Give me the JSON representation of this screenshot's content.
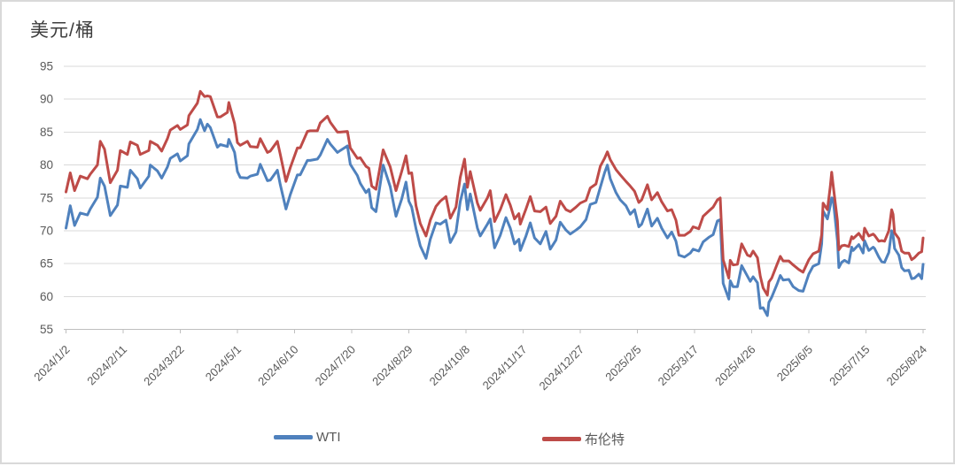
{
  "chart_data": {
    "type": "line",
    "title": "美元/桶",
    "ylabel": "美元/桶",
    "xlabel": "",
    "grid": true,
    "legend_position": "bottom",
    "ylim": [
      55,
      95
    ],
    "y_ticks": [
      55,
      60,
      65,
      70,
      75,
      80,
      85,
      90,
      95
    ],
    "x_tick_labels": [
      "2024/1/2",
      "2024/2/11",
      "2024/3/22",
      "2024/5/1",
      "2024/6/10",
      "2024/7/20",
      "2024/8/29",
      "2024/10/8",
      "2024/11/17",
      "2024/12/27",
      "2025/2/5",
      "2025/3/17",
      "2025/4/26",
      "2025/6/5",
      "2025/7/15",
      "2025/8/24"
    ],
    "x_tick_days": [
      0,
      40,
      80,
      120,
      160,
      200,
      240,
      280,
      320,
      360,
      400,
      440,
      480,
      520,
      560,
      600
    ],
    "x_span_days": 600,
    "days": [
      0,
      3,
      6,
      10,
      15,
      17,
      22,
      24,
      27,
      31,
      36,
      38,
      43,
      45,
      50,
      52,
      58,
      59,
      64,
      67,
      71,
      73,
      78,
      80,
      85,
      86,
      92,
      94,
      97,
      99,
      101,
      106,
      108,
      113,
      114,
      118,
      120,
      122,
      127,
      129,
      134,
      136,
      141,
      143,
      148,
      150,
      154,
      157,
      162,
      164,
      169,
      171,
      176,
      178,
      183,
      185,
      190,
      192,
      197,
      199,
      204,
      206,
      210,
      212,
      214,
      217,
      222,
      227,
      231,
      235,
      238,
      240,
      242,
      245,
      248,
      252,
      255,
      259,
      262,
      266,
      269,
      273,
      276,
      279,
      281,
      283,
      288,
      290,
      295,
      297,
      300,
      304,
      308,
      311,
      314,
      317,
      318,
      322,
      325,
      328,
      332,
      336,
      339,
      343,
      346,
      350,
      353,
      357,
      360,
      364,
      367,
      371,
      374,
      377,
      379,
      381,
      385,
      388,
      392,
      395,
      398,
      401,
      403,
      407,
      410,
      414,
      417,
      421,
      424,
      427,
      429,
      433,
      437,
      439,
      443,
      446,
      450,
      453,
      456,
      458,
      459,
      460,
      464,
      465,
      467,
      470,
      473,
      477,
      479,
      481,
      484,
      486,
      488,
      491,
      492,
      494,
      498,
      500,
      502,
      506,
      509,
      513,
      516,
      520,
      523,
      527,
      529,
      530,
      533,
      535,
      536,
      537,
      540,
      541,
      543,
      545,
      548,
      550,
      551,
      555,
      558,
      559,
      562,
      565,
      566,
      569,
      571,
      573,
      576,
      578,
      579,
      580,
      583,
      585,
      587,
      590,
      592,
      594,
      597,
      599,
      600
    ],
    "series": [
      {
        "name": "WTI",
        "color": "#4F81BD",
        "values": [
          70.4,
          73.8,
          70.8,
          72.7,
          72.4,
          73.3,
          75.1,
          78.0,
          76.8,
          72.3,
          73.9,
          76.8,
          76.6,
          79.2,
          77.9,
          76.5,
          78.3,
          80.0,
          79.1,
          78.0,
          79.7,
          81.0,
          81.7,
          80.6,
          81.4,
          83.2,
          85.4,
          86.9,
          85.2,
          86.2,
          85.7,
          82.7,
          83.1,
          82.8,
          83.9,
          81.9,
          79.0,
          78.1,
          78.0,
          78.3,
          78.6,
          80.1,
          77.6,
          77.7,
          79.2,
          77.0,
          73.3,
          75.5,
          78.5,
          78.5,
          80.7,
          80.7,
          80.9,
          81.5,
          83.9,
          83.2,
          81.9,
          82.2,
          82.9,
          80.1,
          78.4,
          77.2,
          75.8,
          76.3,
          73.5,
          72.9,
          80.0,
          76.7,
          72.2,
          74.8,
          77.4,
          74.5,
          73.6,
          70.3,
          67.7,
          65.8,
          68.7,
          71.2,
          71.0,
          71.6,
          68.2,
          69.8,
          74.4,
          77.1,
          73.2,
          75.6,
          70.4,
          69.2,
          71.0,
          71.8,
          67.4,
          69.3,
          72.0,
          70.4,
          68.0,
          68.7,
          67.0,
          69.2,
          71.2,
          68.9,
          68.0,
          69.9,
          67.2,
          68.6,
          71.3,
          70.1,
          69.5,
          70.1,
          70.6,
          71.7,
          74.0,
          74.3,
          76.6,
          78.8,
          80.0,
          77.9,
          75.8,
          74.7,
          73.8,
          72.5,
          73.2,
          70.6,
          71.0,
          73.3,
          70.7,
          71.9,
          70.4,
          68.9,
          69.8,
          68.4,
          66.3,
          66.0,
          66.6,
          67.2,
          66.9,
          68.3,
          69.0,
          69.4,
          71.5,
          71.7,
          67.0,
          62.0,
          59.6,
          62.4,
          61.5,
          61.5,
          64.7,
          63.1,
          62.3,
          63.0,
          62.1,
          58.2,
          58.3,
          57.1,
          59.1,
          59.9,
          62.0,
          63.2,
          62.5,
          62.6,
          61.5,
          60.9,
          60.8,
          63.4,
          64.6,
          65.0,
          68.0,
          73.0,
          71.8,
          73.8,
          75.0,
          74.9,
          68.5,
          64.4,
          65.2,
          65.5,
          65.1,
          67.5,
          67.0,
          67.9,
          66.6,
          68.5,
          67.0,
          67.5,
          67.3,
          66.0,
          65.3,
          65.2,
          66.7,
          70.0,
          69.3,
          67.3,
          66.3,
          64.4,
          63.9,
          64.0,
          62.7,
          62.8,
          63.4,
          62.7,
          64.9
        ]
      },
      {
        "name": "布伦特",
        "color": "#BE4B48",
        "values": [
          75.9,
          78.8,
          76.1,
          78.3,
          77.9,
          78.6,
          80.0,
          83.6,
          82.4,
          77.3,
          79.2,
          82.2,
          81.6,
          83.5,
          83.0,
          81.6,
          82.2,
          83.6,
          83.0,
          82.1,
          84.0,
          85.3,
          86.0,
          85.4,
          86.1,
          87.5,
          89.4,
          91.2,
          90.4,
          90.5,
          90.4,
          87.3,
          87.3,
          88.0,
          89.5,
          86.3,
          83.4,
          83.0,
          83.6,
          82.8,
          82.7,
          84.0,
          81.9,
          82.1,
          83.6,
          81.6,
          77.5,
          79.6,
          82.6,
          82.6,
          85.1,
          85.2,
          85.2,
          86.4,
          87.4,
          86.5,
          85.0,
          85.0,
          85.1,
          82.6,
          81.0,
          81.1,
          79.8,
          79.5,
          76.8,
          76.3,
          82.3,
          79.7,
          76.1,
          79.0,
          81.4,
          78.7,
          78.8,
          73.8,
          71.1,
          69.2,
          71.6,
          73.7,
          74.5,
          75.2,
          71.9,
          73.6,
          78.1,
          80.9,
          76.6,
          79.0,
          74.2,
          73.1,
          75.0,
          76.1,
          71.4,
          73.2,
          75.5,
          73.9,
          71.8,
          72.6,
          71.0,
          73.3,
          75.2,
          73.0,
          72.9,
          73.6,
          71.1,
          72.2,
          74.5,
          73.2,
          72.9,
          73.6,
          74.2,
          74.6,
          76.5,
          77.1,
          79.8,
          81.0,
          82.0,
          80.8,
          79.3,
          78.5,
          77.5,
          76.8,
          76.0,
          74.3,
          74.7,
          77.0,
          74.7,
          75.8,
          74.4,
          73.0,
          73.2,
          71.6,
          69.3,
          69.3,
          69.9,
          70.6,
          70.3,
          72.2,
          73.0,
          73.6,
          74.7,
          75.0,
          70.1,
          65.6,
          62.8,
          65.5,
          64.8,
          64.9,
          68.0,
          66.3,
          66.1,
          66.9,
          65.9,
          63.1,
          61.3,
          60.2,
          62.2,
          62.8,
          65.0,
          66.1,
          65.4,
          65.4,
          64.8,
          64.1,
          63.7,
          65.6,
          66.5,
          66.9,
          69.4,
          74.2,
          73.2,
          76.7,
          78.9,
          77.0,
          71.5,
          67.1,
          67.7,
          67.8,
          67.6,
          69.1,
          68.8,
          69.6,
          68.6,
          70.4,
          69.2,
          69.5,
          69.3,
          68.4,
          68.5,
          68.4,
          70.0,
          73.2,
          72.5,
          69.7,
          68.8,
          66.9,
          66.6,
          66.6,
          65.6,
          65.9,
          66.6,
          66.8,
          68.9
        ]
      }
    ],
    "colors": {
      "gridline": "#D9D9D9",
      "axis": "#BFBFBF",
      "tick_text": "#595959",
      "title_text": "#3d3d3d",
      "frame_border": "#D9D9D9"
    }
  }
}
